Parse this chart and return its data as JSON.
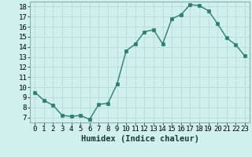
{
  "x": [
    0,
    1,
    2,
    3,
    4,
    5,
    6,
    7,
    8,
    9,
    10,
    11,
    12,
    13,
    14,
    15,
    16,
    17,
    18,
    19,
    20,
    21,
    22,
    23
  ],
  "y": [
    9.5,
    8.7,
    8.2,
    7.2,
    7.1,
    7.2,
    6.8,
    8.3,
    8.4,
    10.3,
    13.6,
    14.3,
    15.5,
    15.7,
    14.3,
    16.8,
    17.2,
    18.2,
    18.1,
    17.6,
    16.3,
    14.9,
    14.2,
    13.1
  ],
  "line_color": "#2e7d6e",
  "marker": "s",
  "markersize": 2.5,
  "linewidth": 1.0,
  "bg_color": "#cff0ec",
  "grid_color": "#b0d8d0",
  "xlabel": "Humidex (Indice chaleur)",
  "xlabel_fontsize": 7.5,
  "tick_fontsize": 6.5,
  "ylim": [
    6.5,
    18.5
  ],
  "yticks": [
    7,
    8,
    9,
    10,
    11,
    12,
    13,
    14,
    15,
    16,
    17,
    18
  ],
  "xticks": [
    0,
    1,
    2,
    3,
    4,
    5,
    6,
    7,
    8,
    9,
    10,
    11,
    12,
    13,
    14,
    15,
    16,
    17,
    18,
    19,
    20,
    21,
    22,
    23
  ],
  "xlim": [
    -0.5,
    23.5
  ]
}
